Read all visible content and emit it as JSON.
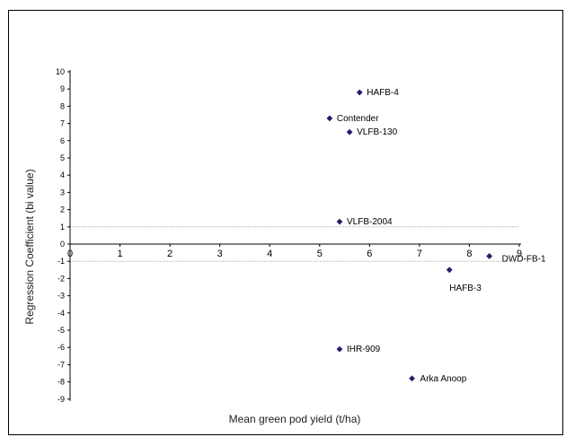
{
  "chart_data": {
    "type": "scatter",
    "title": "",
    "xlabel": "Mean green pod yield (t/ha)",
    "ylabel": "Regression Coefficient (bi value)",
    "xlim": [
      0,
      9
    ],
    "ylim": [
      -9,
      10
    ],
    "x_ticks": [
      "0",
      "1",
      "2",
      "3",
      "4",
      "5",
      "6",
      "7",
      "8",
      "9"
    ],
    "y_ticks": [
      "10",
      "9",
      "8",
      "7",
      "6",
      "5",
      "4",
      "3",
      "2",
      "1",
      "0",
      "-1",
      "-2",
      "-3",
      "-4",
      "-5",
      "-6",
      "-7",
      "-8",
      "-9"
    ],
    "reference_lines_y": [
      1,
      -1
    ],
    "grid": false,
    "marker_color": "#1f1f6e",
    "points": [
      {
        "label": "HAFB-4",
        "x": 5.8,
        "y": 8.8
      },
      {
        "label": "Contender",
        "x": 5.2,
        "y": 7.3
      },
      {
        "label": "VLFB-130",
        "x": 5.6,
        "y": 6.5
      },
      {
        "label": "VLFB-2004",
        "x": 5.4,
        "y": 1.3
      },
      {
        "label": "DWD-FB-1",
        "x": 8.4,
        "y": -0.7
      },
      {
        "label": "HAFB-3",
        "x": 7.6,
        "y": -1.5
      },
      {
        "label": "IHR-909",
        "x": 5.4,
        "y": -6.1
      },
      {
        "label": "Arka Anoop",
        "x": 6.85,
        "y": -7.8
      }
    ]
  }
}
